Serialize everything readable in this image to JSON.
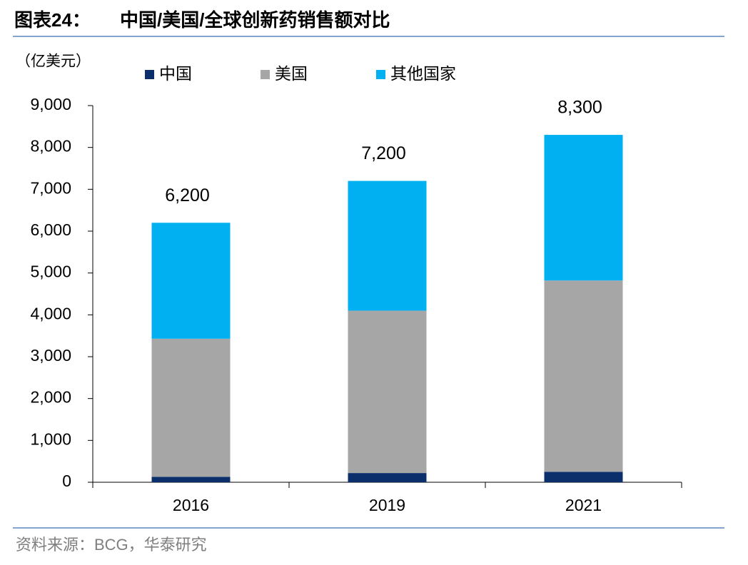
{
  "chart_data": {
    "type": "stacked-bar",
    "figure_label": "图表24：",
    "title": "中国/美国/全球创新药销售额对比",
    "unit_label": "（亿美元）",
    "categories": [
      "2016",
      "2019",
      "2021"
    ],
    "series": [
      {
        "name": "中国",
        "color": "#0a2f6b",
        "values": [
          130,
          220,
          250
        ]
      },
      {
        "name": "美国",
        "color": "#a6a6a6",
        "values": [
          3300,
          3880,
          4570
        ]
      },
      {
        "name": "其他国家",
        "color": "#00b0f0",
        "values": [
          2770,
          3100,
          3480
        ]
      }
    ],
    "totals": {
      "values": [
        6200,
        7200,
        8300
      ],
      "value_labels": [
        "6,200",
        "7,200",
        "8,300"
      ]
    },
    "ylim": [
      0,
      9000
    ],
    "yticks": [
      0,
      {
        "value": 1000,
        "label": "1,000"
      },
      {
        "value": 2000,
        "label": "2,000"
      },
      {
        "value": 3000,
        "label": "3,000"
      },
      {
        "value": 4000,
        "label": "4,000"
      },
      {
        "value": 5000,
        "label": "5,000"
      },
      {
        "value": 6000,
        "label": "6,000"
      },
      {
        "value": 7000,
        "label": "7,000"
      },
      {
        "value": 8000,
        "label": "8,000"
      },
      {
        "value": 9000,
        "label": "9,000"
      }
    ],
    "grid": false,
    "legend": "top",
    "source": "资料来源：BCG，华泰研究"
  }
}
